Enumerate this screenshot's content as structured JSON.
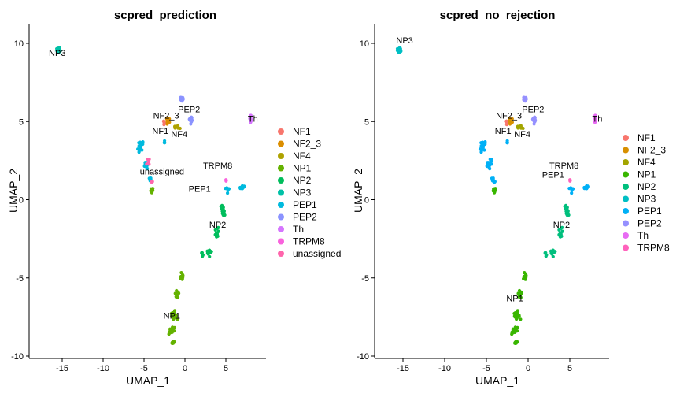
{
  "chart_data": [
    {
      "type": "scatter",
      "title": "scpred_prediction",
      "xlabel": "UMAP_1",
      "ylabel": "UMAP_2",
      "xlim": [
        -17,
        10
      ],
      "ylim": [
        -10.2,
        10.8
      ],
      "xticks": [
        "-15",
        "-10",
        "-5",
        "0",
        "5"
      ],
      "yticks": [
        "10",
        "5",
        "0",
        "-5",
        "-10"
      ],
      "legend": [
        "NF1",
        "NF2_3",
        "NF4",
        "NP1",
        "NP2",
        "NP3",
        "PEP1",
        "PEP2",
        "Th",
        "TRPM8",
        "unassigned"
      ],
      "cluster_labels": [
        {
          "text": "NP3",
          "x": -15.6,
          "y": 9.2
        },
        {
          "text": "PEP2",
          "x": 0.5,
          "y": 5.6
        },
        {
          "text": "NF2_3",
          "x": -2.3,
          "y": 5.2
        },
        {
          "text": "Th",
          "x": 8.3,
          "y": 5.0
        },
        {
          "text": "NF1",
          "x": -3.0,
          "y": 4.2
        },
        {
          "text": "NF4",
          "x": -0.7,
          "y": 4.0
        },
        {
          "text": "TRPM8",
          "x": 4.0,
          "y": 2.0
        },
        {
          "text": "unassigned",
          "x": -2.8,
          "y": 1.6
        },
        {
          "text": "PEP1",
          "x": 1.8,
          "y": 0.5
        },
        {
          "text": "NP2",
          "x": 4.0,
          "y": -1.8
        },
        {
          "text": "NP1",
          "x": -1.6,
          "y": -7.6
        }
      ]
    },
    {
      "type": "scatter",
      "title": "scpred_no_rejection",
      "xlabel": "UMAP_1",
      "ylabel": "UMAP_2",
      "xlim": [
        -17,
        10
      ],
      "ylim": [
        -10.2,
        10.8
      ],
      "xticks": [
        "-15",
        "-10",
        "-5",
        "0",
        "5"
      ],
      "yticks": [
        "10",
        "5",
        "0",
        "-5",
        "-10"
      ],
      "legend": [
        "NF1",
        "NF2_3",
        "NF4",
        "NP1",
        "NP2",
        "NP3",
        "PEP1",
        "PEP2",
        "Th",
        "TRPM8"
      ],
      "cluster_labels": [
        {
          "text": "NP3",
          "x": -14.8,
          "y": 10.0
        },
        {
          "text": "PEP2",
          "x": 0.6,
          "y": 5.6
        },
        {
          "text": "NF2_3",
          "x": -2.3,
          "y": 5.2
        },
        {
          "text": "Th",
          "x": 8.3,
          "y": 5.0
        },
        {
          "text": "NF1",
          "x": -3.0,
          "y": 4.2
        },
        {
          "text": "NF4",
          "x": -0.7,
          "y": 4.0
        },
        {
          "text": "TRPM8",
          "x": 4.3,
          "y": 2.0
        },
        {
          "text": "PEP1",
          "x": 3.0,
          "y": 1.4
        },
        {
          "text": "NP2",
          "x": 4.0,
          "y": -1.8
        },
        {
          "text": "NP1",
          "x": -1.6,
          "y": -6.5
        }
      ]
    }
  ],
  "palette": {
    "NF1": "#F8766D",
    "NF2_3": "#DB8E00",
    "NF4": "#AEA200",
    "NP1": "#64B200",
    "NP2": "#00BD5C",
    "NP3": "#00C1A7",
    "PEP1": "#00BADE",
    "PEP2": "#8B93FF",
    "Th": "#D575FE",
    "TRPM8": "#F962DD",
    "unassigned": "#FF65AC"
  },
  "palette_no_rejection": {
    "NF1": "#F8766D",
    "NF2_3": "#D89000",
    "NF4": "#A3A500",
    "NP1": "#39B600",
    "NP2": "#00BF7D",
    "NP3": "#00BFC4",
    "PEP1": "#00B0F6",
    "PEP2": "#9590FF",
    "Th": "#E76BF3",
    "TRPM8": "#FF62BC"
  }
}
